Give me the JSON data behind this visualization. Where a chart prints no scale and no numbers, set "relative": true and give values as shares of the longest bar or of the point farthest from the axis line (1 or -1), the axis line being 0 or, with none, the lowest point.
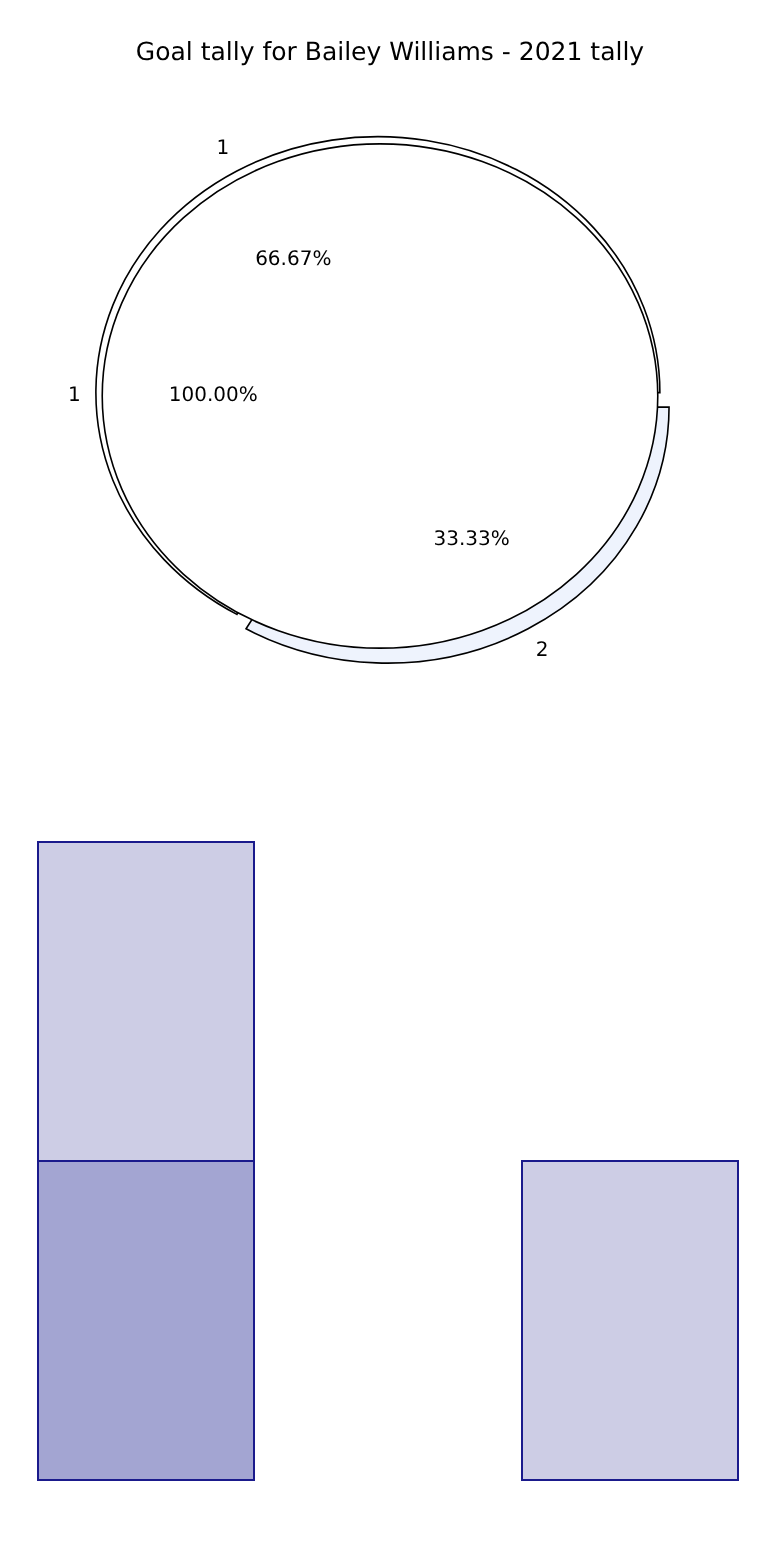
{
  "chart_data": [
    {
      "type": "pie",
      "title": "Goal tally for Bailey Williams - 2021 tally",
      "categories": [
        "1",
        "2"
      ],
      "values": [
        66.67,
        33.33
      ],
      "colors": [
        "#ffffff",
        "#eef3fd"
      ],
      "value_labels": [
        "66.67%",
        "33.33%"
      ]
    },
    {
      "type": "pie",
      "categories": [
        "1"
      ],
      "values": [
        100
      ],
      "colors": [
        "#ffffff"
      ],
      "value_labels": [
        "100.00%"
      ]
    },
    {
      "type": "bar",
      "relative": true,
      "stacked": true,
      "categories": [
        null,
        null
      ],
      "series": [
        {
          "color": "#a3a5d2",
          "values": [
            0.5,
            null
          ]
        },
        {
          "color": "#cdcde5",
          "values": [
            0.5,
            0.5
          ]
        }
      ]
    }
  ]
}
